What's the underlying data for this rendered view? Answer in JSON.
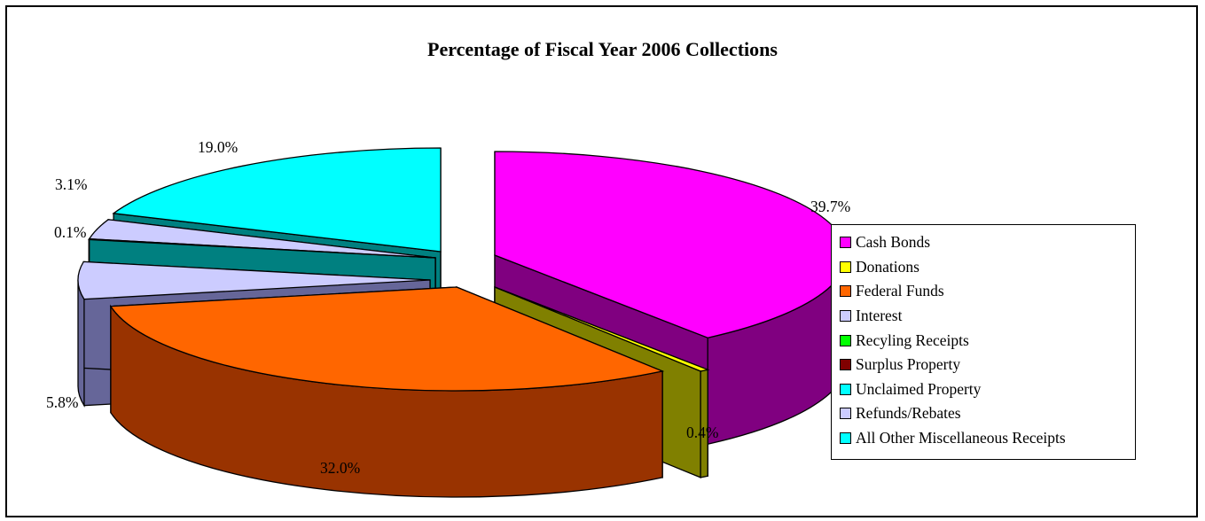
{
  "chart_data": {
    "type": "pie",
    "title": "Percentage of Fiscal Year 2006 Collections",
    "categories": [
      "Cash Bonds",
      "Donations",
      "Federal Funds",
      "Interest",
      "Recyling Receipts",
      "Surplus Property",
      "Unclaimed Property",
      "Refunds/Rebates",
      "All Other Miscellaneous Receipts"
    ],
    "values": [
      39.7,
      0.4,
      32.0,
      5.8,
      0.0,
      0.0,
      0.1,
      3.1,
      19.0
    ],
    "data_labels": [
      "39.7%",
      "0.4%",
      "32.0%",
      "5.8%",
      "",
      "",
      "0.1%",
      "3.1%",
      "19.0%"
    ],
    "colors": [
      "#FF00FF",
      "#FFFF00",
      "#FF6600",
      "#CCCCFF",
      "#00FF00",
      "#800000",
      "#00FFFF",
      "#CCCCFF",
      "#00FFFF"
    ],
    "side_colors": [
      "#800080",
      "#808000",
      "#993300",
      "#666699",
      "#008000",
      "#400000",
      "#008080",
      "#666699",
      "#008080"
    ],
    "style": "3d-exploded",
    "legend_position": "right"
  }
}
